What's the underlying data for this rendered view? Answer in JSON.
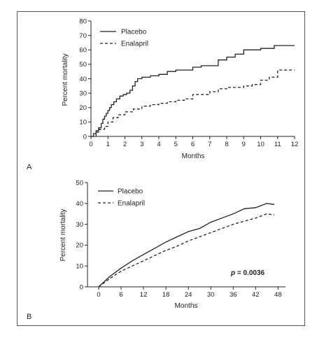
{
  "chart_data": [
    {
      "type": "line",
      "panel_label": "A",
      "title": "",
      "xlabel": "Months",
      "ylabel": "Percent mortality",
      "xlim": [
        0,
        12
      ],
      "ylim": [
        0,
        80
      ],
      "x_ticks": [
        0,
        1,
        2,
        3,
        4,
        5,
        6,
        7,
        8,
        9,
        10,
        11,
        12
      ],
      "y_ticks": [
        0,
        10,
        20,
        30,
        40,
        50,
        60,
        70,
        80
      ],
      "grid": false,
      "step": true,
      "legend": {
        "placement": "top-left"
      },
      "series": [
        {
          "name": "Placebo",
          "style": "solid",
          "x": [
            0,
            0.15,
            0.3,
            0.45,
            0.6,
            0.7,
            0.8,
            0.9,
            1.0,
            1.1,
            1.2,
            1.35,
            1.5,
            1.7,
            1.9,
            2.1,
            2.3,
            2.45,
            2.6,
            2.75,
            3.0,
            3.5,
            4.0,
            4.5,
            5.0,
            6.0,
            6.5,
            7.0,
            7.5,
            8.0,
            8.5,
            9.0,
            10.0,
            10.8,
            12.0
          ],
          "y": [
            0,
            2,
            4,
            6,
            9,
            12,
            14,
            16,
            18,
            20,
            22,
            24,
            26,
            28,
            29,
            30,
            32,
            35,
            38,
            40,
            41,
            42,
            43,
            45,
            46,
            48,
            49,
            49,
            53,
            55,
            57,
            60,
            61,
            63,
            63
          ]
        },
        {
          "name": "Enalapril",
          "style": "dashed",
          "x": [
            0,
            0.3,
            0.5,
            0.8,
            1.0,
            1.3,
            1.6,
            2.0,
            2.5,
            3.0,
            3.5,
            4.0,
            4.5,
            5.0,
            5.5,
            6.0,
            7.0,
            7.5,
            8.0,
            8.5,
            9.0,
            9.5,
            10.0,
            10.5,
            11.0,
            12.0
          ],
          "y": [
            0,
            3,
            5,
            7,
            10,
            13,
            15,
            17,
            19,
            21,
            22,
            23,
            24,
            25,
            26,
            29,
            31,
            33,
            34,
            34,
            35,
            36,
            39,
            41,
            46,
            46
          ]
        }
      ]
    },
    {
      "type": "line",
      "panel_label": "B",
      "title": "",
      "xlabel": "Months",
      "ylabel": "Percent mortality",
      "xlim": [
        -3,
        50
      ],
      "ylim": [
        0,
        50
      ],
      "x_ticks": [
        0,
        6,
        12,
        18,
        24,
        30,
        36,
        42,
        48
      ],
      "y_ticks": [
        0,
        10,
        20,
        30,
        40,
        50
      ],
      "grid": false,
      "legend": {
        "placement": "top-left"
      },
      "annotation": {
        "label": "p",
        "text": " = 0.0036"
      },
      "series": [
        {
          "name": "Placebo",
          "style": "solid",
          "x": [
            0,
            3,
            6,
            9,
            12,
            15,
            18,
            21,
            24,
            27,
            30,
            33,
            36,
            39,
            42,
            45,
            47
          ],
          "y": [
            0,
            5,
            9,
            12.5,
            15.5,
            18.5,
            21.5,
            24,
            26.5,
            28,
            31,
            33,
            35,
            37.5,
            38,
            40,
            39.5
          ]
        },
        {
          "name": "Enalapril",
          "style": "dashed",
          "x": [
            0,
            3,
            6,
            9,
            12,
            15,
            18,
            21,
            24,
            27,
            30,
            33,
            36,
            39,
            42,
            45,
            47
          ],
          "y": [
            0,
            4,
            7.5,
            10,
            12.5,
            15,
            17.5,
            19.5,
            22,
            24,
            26,
            28,
            30,
            31.5,
            33,
            35,
            34.5
          ]
        }
      ]
    }
  ]
}
